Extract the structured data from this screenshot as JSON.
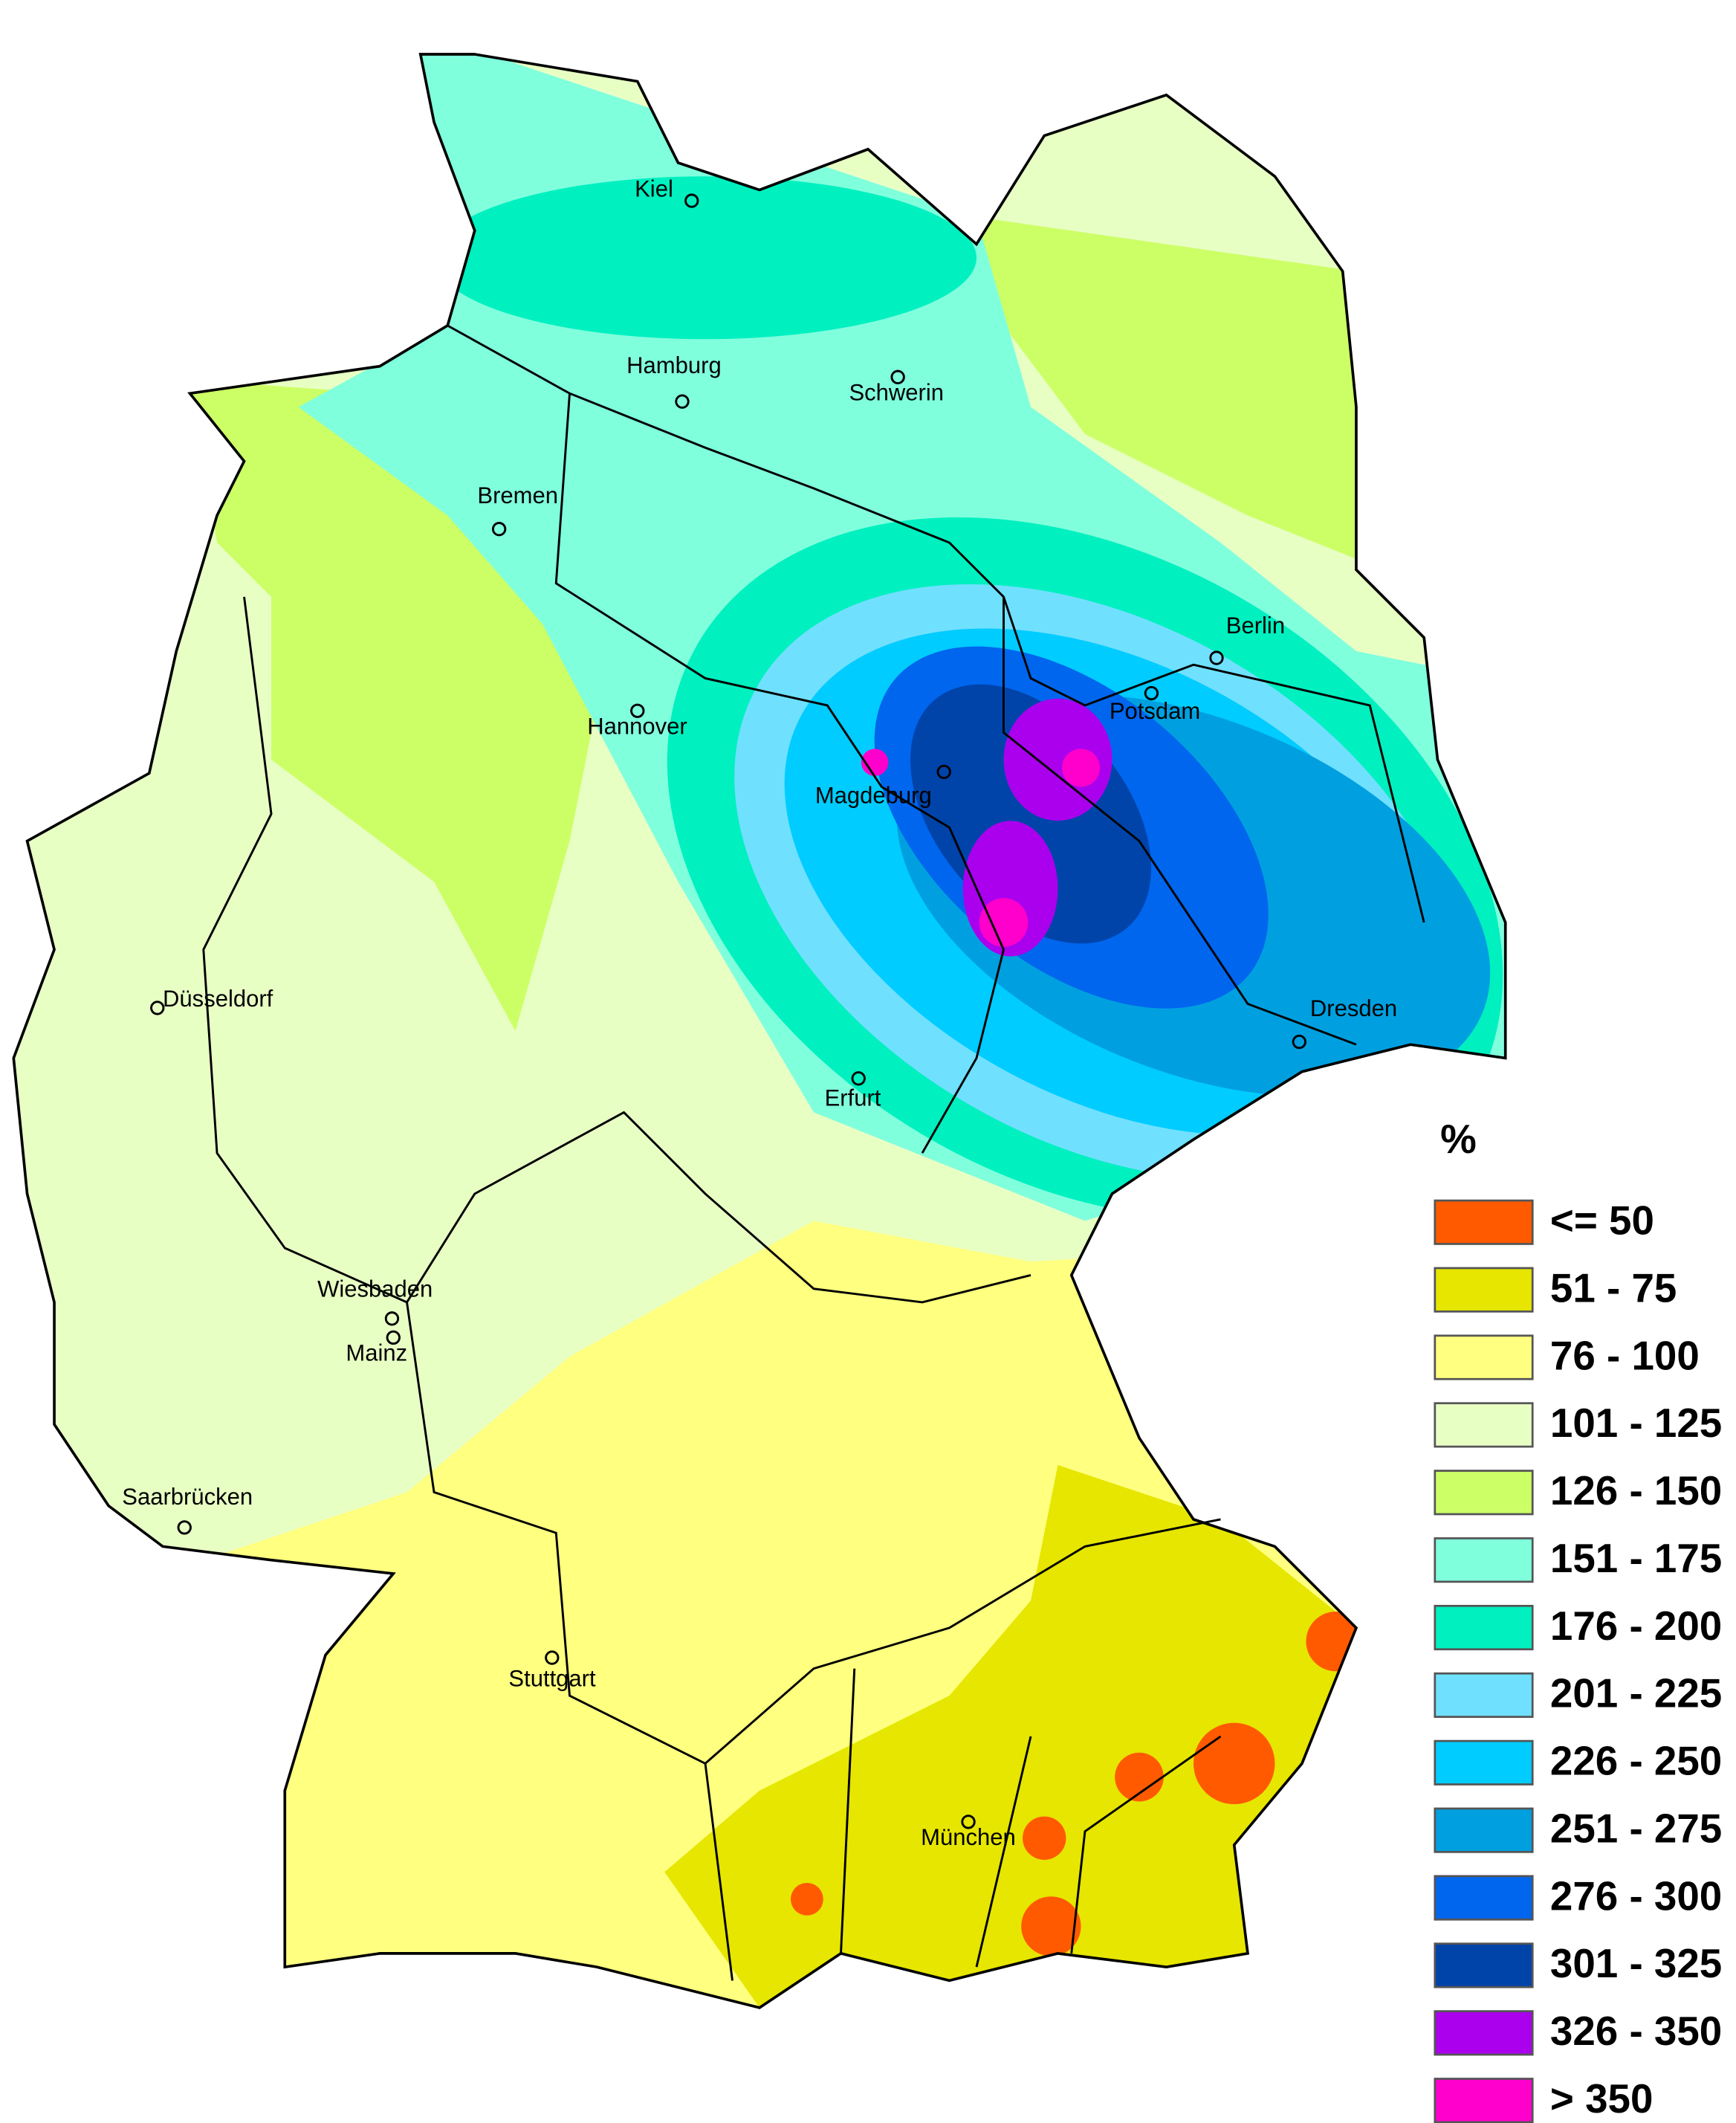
{
  "legend": {
    "title": "%",
    "items": [
      {
        "label": "<= 50",
        "color": "#ff5a00"
      },
      {
        "label": "51 - 75",
        "color": "#e6e600"
      },
      {
        "label": "76 - 100",
        "color": "#ffff80"
      },
      {
        "label": "101 - 125",
        "color": "#e8ffc4"
      },
      {
        "label": "126 - 150",
        "color": "#ccff66"
      },
      {
        "label": "151 - 175",
        "color": "#80ffdd"
      },
      {
        "label": "176 - 200",
        "color": "#00f0c0"
      },
      {
        "label": "201 - 225",
        "color": "#70e0ff"
      },
      {
        "label": "226 - 250",
        "color": "#00ccff"
      },
      {
        "label": "251 - 275",
        "color": "#00a0e0"
      },
      {
        "label": "276 - 300",
        "color": "#0066ee"
      },
      {
        "label": "301 - 325",
        "color": "#0044aa"
      },
      {
        "label": "326 - 350",
        "color": "#aa00ee"
      },
      {
        "label": "> 350",
        "color": "#ff00cc"
      }
    ]
  },
  "cities": [
    "Kiel",
    "Hamburg",
    "Schwerin",
    "Bremen",
    "Berlin",
    "Potsdam",
    "Hannover",
    "Magdeburg",
    "Düsseldorf",
    "Erfurt",
    "Dresden",
    "Wiesbaden",
    "Mainz",
    "Saarbrücken",
    "Stuttgart",
    "München"
  ]
}
